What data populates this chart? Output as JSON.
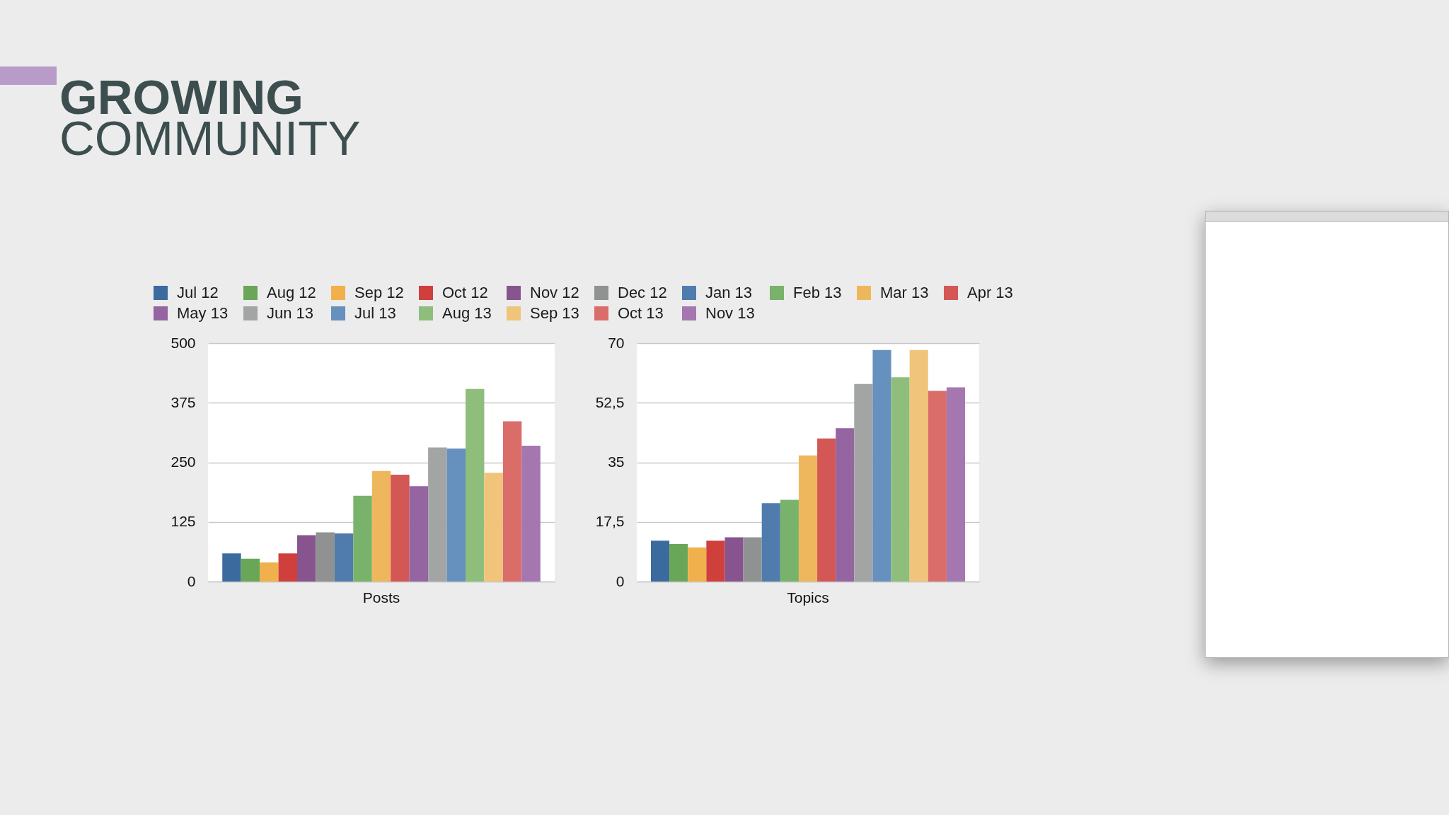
{
  "chart_data": [
    {
      "type": "bar",
      "title": "GROWING COMMUNITY",
      "categories": [
        "Posts"
      ],
      "series": [
        {
          "name": "Jul 12",
          "color": "#3b6a9e",
          "values": [
            59
          ]
        },
        {
          "name": "Aug 12",
          "color": "#6aa658",
          "values": [
            48
          ]
        },
        {
          "name": "Sep 12",
          "color": "#f0b04c",
          "values": [
            40
          ]
        },
        {
          "name": "Oct 12",
          "color": "#cf3f3c",
          "values": [
            59
          ]
        },
        {
          "name": "Nov 12",
          "color": "#87548f",
          "values": [
            97
          ]
        },
        {
          "name": "Dec 12",
          "color": "#909292",
          "values": [
            103
          ]
        },
        {
          "name": "Jan 13",
          "color": "#4f7cad",
          "values": [
            101
          ]
        },
        {
          "name": "Feb 13",
          "color": "#79b26a",
          "values": [
            180
          ]
        },
        {
          "name": "Mar 13",
          "color": "#efb75d",
          "values": [
            232
          ]
        },
        {
          "name": "Apr 13",
          "color": "#d35755",
          "values": [
            224
          ]
        },
        {
          "name": "May 13",
          "color": "#9465a0",
          "values": [
            200
          ]
        },
        {
          "name": "Jun 13",
          "color": "#a3a4a4",
          "values": [
            281
          ]
        },
        {
          "name": "Jul 13",
          "color": "#6690bd",
          "values": [
            279
          ]
        },
        {
          "name": "Aug 13",
          "color": "#8fbe7c",
          "values": [
            404
          ]
        },
        {
          "name": "Sep 13",
          "color": "#f1c47b",
          "values": [
            228
          ]
        },
        {
          "name": "Oct 13",
          "color": "#da6d6a",
          "values": [
            336
          ]
        },
        {
          "name": "Nov 13",
          "color": "#a577b0",
          "values": [
            285
          ]
        }
      ],
      "ylim": [
        0,
        500
      ],
      "yticks": [
        0,
        125,
        250,
        375,
        500
      ],
      "grid": "y",
      "legend": "top"
    },
    {
      "type": "bar",
      "categories": [
        "Topics"
      ],
      "series": [
        {
          "name": "Jul 12",
          "color": "#3b6a9e",
          "values": [
            12
          ]
        },
        {
          "name": "Aug 12",
          "color": "#6aa658",
          "values": [
            11
          ]
        },
        {
          "name": "Sep 12",
          "color": "#f0b04c",
          "values": [
            10
          ]
        },
        {
          "name": "Oct 12",
          "color": "#cf3f3c",
          "values": [
            12
          ]
        },
        {
          "name": "Nov 12",
          "color": "#87548f",
          "values": [
            13
          ]
        },
        {
          "name": "Dec 12",
          "color": "#909292",
          "values": [
            13
          ]
        },
        {
          "name": "Jan 13",
          "color": "#4f7cad",
          "values": [
            23
          ]
        },
        {
          "name": "Feb 13",
          "color": "#79b26a",
          "values": [
            24
          ]
        },
        {
          "name": "Mar 13",
          "color": "#efb75d",
          "values": [
            37
          ]
        },
        {
          "name": "Apr 13",
          "color": "#d35755",
          "values": [
            42
          ]
        },
        {
          "name": "May 13",
          "color": "#9465a0",
          "values": [
            45
          ]
        },
        {
          "name": "Jun 13",
          "color": "#a3a4a4",
          "values": [
            58
          ]
        },
        {
          "name": "Jul 13",
          "color": "#6690bd",
          "values": [
            68
          ]
        },
        {
          "name": "Aug 13",
          "color": "#8fbe7c",
          "values": [
            60
          ]
        },
        {
          "name": "Sep 13",
          "color": "#f1c47b",
          "values": [
            68
          ]
        },
        {
          "name": "Oct 13",
          "color": "#da6d6a",
          "values": [
            56
          ]
        },
        {
          "name": "Nov 13",
          "color": "#a577b0",
          "values": [
            57
          ]
        }
      ],
      "ylim": [
        0,
        70
      ],
      "yticks": [
        0,
        {
          "value": 17.5,
          "label": "17,5"
        },
        35,
        {
          "value": 52.5,
          "label": "52,5"
        },
        70
      ],
      "grid": "y"
    }
  ]
}
